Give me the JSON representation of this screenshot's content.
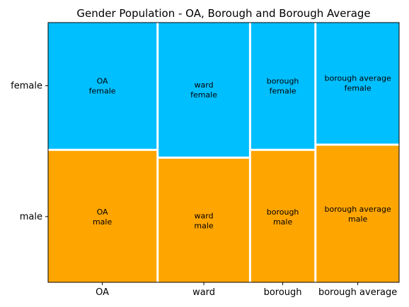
{
  "chart_data": {
    "type": "mosaic",
    "title": "Gender Population - OA, Borough and Borough Average",
    "categories": [
      "OA",
      "ward",
      "borough",
      "borough average"
    ],
    "groups": [
      "female",
      "male"
    ],
    "column_widths": [
      0.42,
      0.35,
      0.245,
      0.32
    ],
    "female_share": [
      0.49,
      0.52,
      0.49,
      0.47
    ],
    "cell_labels": [
      [
        "OA\nfemale",
        "OA\nmale"
      ],
      [
        "ward\nfemale",
        "ward\nmale"
      ],
      [
        "borough\nfemale",
        "borough\nmale"
      ],
      [
        "borough average\nfemale",
        "borough average\nmale"
      ]
    ],
    "colors": {
      "female": "#00BFFF",
      "male": "#FFA500"
    },
    "legend": "none",
    "grid": false
  }
}
